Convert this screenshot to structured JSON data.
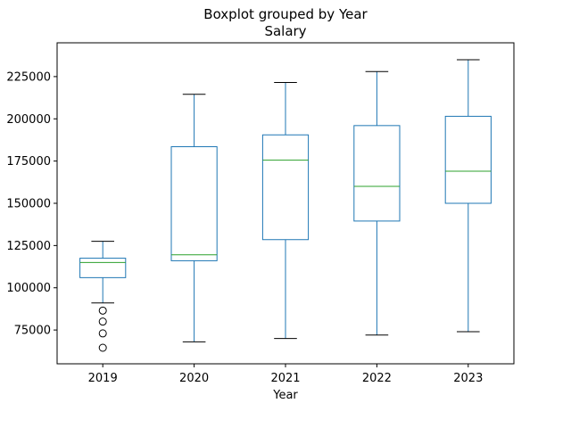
{
  "chart_data": {
    "type": "boxplot",
    "title": "Boxplot grouped by Year",
    "subtitle": "Salary",
    "xlabel": "Year",
    "ylabel": "",
    "ylim": [
      55000,
      245000
    ],
    "yticks": [
      75000,
      100000,
      125000,
      150000,
      175000,
      200000,
      225000
    ],
    "ytick_labels": [
      "75000",
      "100000",
      "125000",
      "150000",
      "175000",
      "200000",
      "225000"
    ],
    "grid": false,
    "colors": {
      "box": "#1f77b4",
      "median": "#2ca02c",
      "cap": "#000000",
      "flier": "#000000"
    },
    "categories": [
      "2019",
      "2020",
      "2021",
      "2022",
      "2023"
    ],
    "boxes": [
      {
        "category": "2019",
        "whisker_low": 91000,
        "q1": 106000,
        "median": 115000,
        "q3": 117500,
        "whisker_high": 127500,
        "fliers": [
          86500,
          80000,
          73000,
          64500
        ]
      },
      {
        "category": "2020",
        "whisker_low": 68000,
        "q1": 116000,
        "median": 119500,
        "q3": 183500,
        "whisker_high": 214500,
        "fliers": []
      },
      {
        "category": "2021",
        "whisker_low": 70000,
        "q1": 128500,
        "median": 175500,
        "q3": 190500,
        "whisker_high": 221500,
        "fliers": []
      },
      {
        "category": "2022",
        "whisker_low": 72000,
        "q1": 139500,
        "median": 160000,
        "q3": 196000,
        "whisker_high": 228000,
        "fliers": []
      },
      {
        "category": "2023",
        "whisker_low": 74000,
        "q1": 150000,
        "median": 169000,
        "q3": 201500,
        "whisker_high": 235000,
        "fliers": []
      }
    ]
  }
}
